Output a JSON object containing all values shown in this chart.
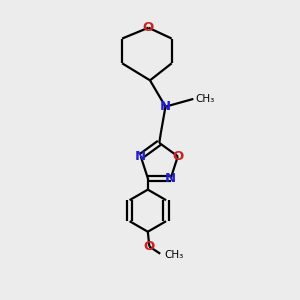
{
  "bg_color": "#ececec",
  "bond_color": "#000000",
  "N_color": "#2222cc",
  "O_color": "#cc2222",
  "line_width": 1.6,
  "figsize": [
    3.0,
    3.0
  ],
  "dpi": 100,
  "xlim": [
    0.15,
    0.85
  ],
  "ylim": [
    0.02,
    0.98
  ]
}
